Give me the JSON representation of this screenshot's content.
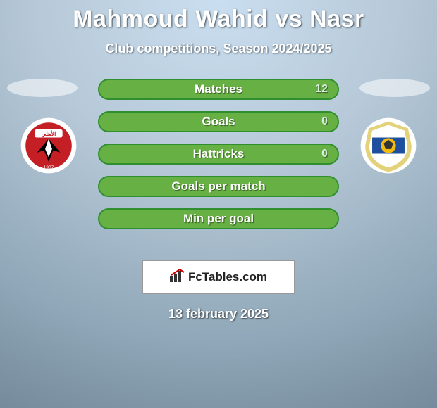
{
  "title": "Mahmoud Wahid vs Nasr",
  "subtitle": "Club competitions, Season 2024/2025",
  "date_footer": "13 february 2025",
  "brand_label": "FcTables.com",
  "bg_gradient": {
    "c1": "#c9def0",
    "c2": "#b7c9d8",
    "c3": "#8fa7b8",
    "c4": "#6e8293"
  },
  "stat_row_style": {
    "border_color": "#2f8f2f",
    "bg_color": "#67b044",
    "text_color": "#ffffff",
    "val_color": "#d8eedd"
  },
  "rows": [
    {
      "label": "Matches",
      "value": "12"
    },
    {
      "label": "Goals",
      "value": "0"
    },
    {
      "label": "Hattricks",
      "value": "0"
    },
    {
      "label": "Goals per match",
      "value": ""
    },
    {
      "label": "Min per goal",
      "value": ""
    }
  ],
  "left_team": {
    "name": "Al Ahly",
    "palette": {
      "shield_bg": "#c31f25",
      "text": "#ffffff",
      "accent": "#000000"
    }
  },
  "right_team": {
    "name": "Ismaily",
    "palette": {
      "shield_bg": "#e3d27a",
      "stripe": "#1e4e9e",
      "ball": "#f2b90f"
    }
  }
}
